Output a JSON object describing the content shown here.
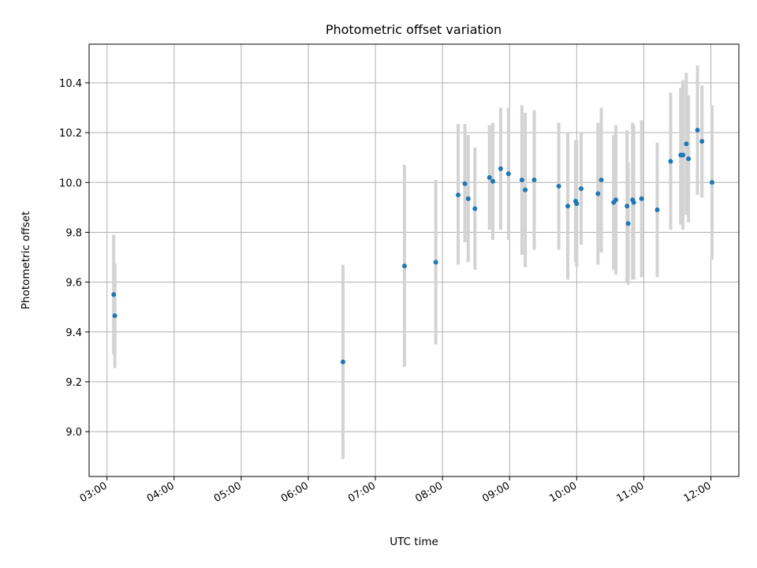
{
  "chart_data": {
    "type": "scatter",
    "title": "Photometric offset variation",
    "xlabel": "UTC time",
    "ylabel": "Photometric offset",
    "x_unit": "UTC hours",
    "xlim": [
      "02:44",
      "12:25"
    ],
    "ylim": [
      8.82,
      10.555
    ],
    "x_ticks": [
      "03:00",
      "04:00",
      "05:00",
      "06:00",
      "07:00",
      "08:00",
      "09:00",
      "10:00",
      "11:00",
      "12:00"
    ],
    "y_ticks": [
      "9.0",
      "9.2",
      "9.4",
      "9.6",
      "9.8",
      "10.0",
      "10.2",
      "10.4"
    ],
    "grid": true,
    "colors": {
      "point": "#1f77b4",
      "errorbar": "#d3d3d3",
      "grid": "#b0b0b0"
    },
    "points": [
      {
        "x": "03:06",
        "y": 9.55,
        "lo": 9.31,
        "hi": 9.79
      },
      {
        "x": "03:07",
        "y": 9.465,
        "lo": 9.255,
        "hi": 9.675
      },
      {
        "x": "06:31",
        "y": 9.28,
        "lo": 8.89,
        "hi": 9.67
      },
      {
        "x": "07:26",
        "y": 9.665,
        "lo": 9.26,
        "hi": 10.07
      },
      {
        "x": "07:54",
        "y": 9.68,
        "lo": 9.35,
        "hi": 10.01
      },
      {
        "x": "08:14",
        "y": 9.95,
        "lo": 9.67,
        "hi": 10.235
      },
      {
        "x": "08:20",
        "y": 9.995,
        "lo": 9.76,
        "hi": 10.235
      },
      {
        "x": "08:23",
        "y": 9.935,
        "lo": 9.68,
        "hi": 10.19
      },
      {
        "x": "08:29",
        "y": 9.895,
        "lo": 9.65,
        "hi": 10.14
      },
      {
        "x": "08:42",
        "y": 10.02,
        "lo": 9.81,
        "hi": 10.23
      },
      {
        "x": "08:45",
        "y": 10.005,
        "lo": 9.77,
        "hi": 10.24
      },
      {
        "x": "08:52",
        "y": 10.055,
        "lo": 9.81,
        "hi": 10.3
      },
      {
        "x": "08:59",
        "y": 10.035,
        "lo": 9.77,
        "hi": 10.3
      },
      {
        "x": "09:11",
        "y": 10.01,
        "lo": 9.71,
        "hi": 10.31
      },
      {
        "x": "09:14",
        "y": 9.97,
        "lo": 9.66,
        "hi": 10.28
      },
      {
        "x": "09:22",
        "y": 10.01,
        "lo": 9.73,
        "hi": 10.29
      },
      {
        "x": "09:44",
        "y": 9.985,
        "lo": 9.73,
        "hi": 10.24
      },
      {
        "x": "09:52",
        "y": 9.905,
        "lo": 9.61,
        "hi": 10.2
      },
      {
        "x": "09:59",
        "y": 9.925,
        "lo": 9.68,
        "hi": 10.17
      },
      {
        "x": "10:00",
        "y": 9.915,
        "lo": 9.66,
        "hi": 10.17
      },
      {
        "x": "10:04",
        "y": 9.975,
        "lo": 9.75,
        "hi": 10.2
      },
      {
        "x": "10:19",
        "y": 9.955,
        "lo": 9.67,
        "hi": 10.24
      },
      {
        "x": "10:22",
        "y": 10.01,
        "lo": 9.72,
        "hi": 10.3
      },
      {
        "x": "10:33",
        "y": 9.92,
        "lo": 9.65,
        "hi": 10.19
      },
      {
        "x": "10:35",
        "y": 9.93,
        "lo": 9.63,
        "hi": 10.23
      },
      {
        "x": "10:45",
        "y": 9.905,
        "lo": 9.6,
        "hi": 10.21
      },
      {
        "x": "10:46",
        "y": 9.835,
        "lo": 9.59,
        "hi": 10.08
      },
      {
        "x": "10:50",
        "y": 9.93,
        "lo": 9.61,
        "hi": 10.24
      },
      {
        "x": "10:51",
        "y": 9.92,
        "lo": 9.61,
        "hi": 10.23
      },
      {
        "x": "10:58",
        "y": 9.935,
        "lo": 9.62,
        "hi": 10.25
      },
      {
        "x": "11:12",
        "y": 9.89,
        "lo": 9.62,
        "hi": 10.16
      },
      {
        "x": "11:24",
        "y": 10.085,
        "lo": 9.81,
        "hi": 10.36
      },
      {
        "x": "11:33",
        "y": 10.11,
        "lo": 9.83,
        "hi": 10.38
      },
      {
        "x": "11:35",
        "y": 10.11,
        "lo": 9.81,
        "hi": 10.41
      },
      {
        "x": "11:38",
        "y": 10.155,
        "lo": 9.87,
        "hi": 10.44
      },
      {
        "x": "11:40",
        "y": 10.095,
        "lo": 9.84,
        "hi": 10.35
      },
      {
        "x": "11:48",
        "y": 10.21,
        "lo": 9.95,
        "hi": 10.47
      },
      {
        "x": "11:52",
        "y": 10.165,
        "lo": 9.94,
        "hi": 10.39
      },
      {
        "x": "12:01",
        "y": 10.0,
        "lo": 9.69,
        "hi": 10.31
      }
    ]
  }
}
